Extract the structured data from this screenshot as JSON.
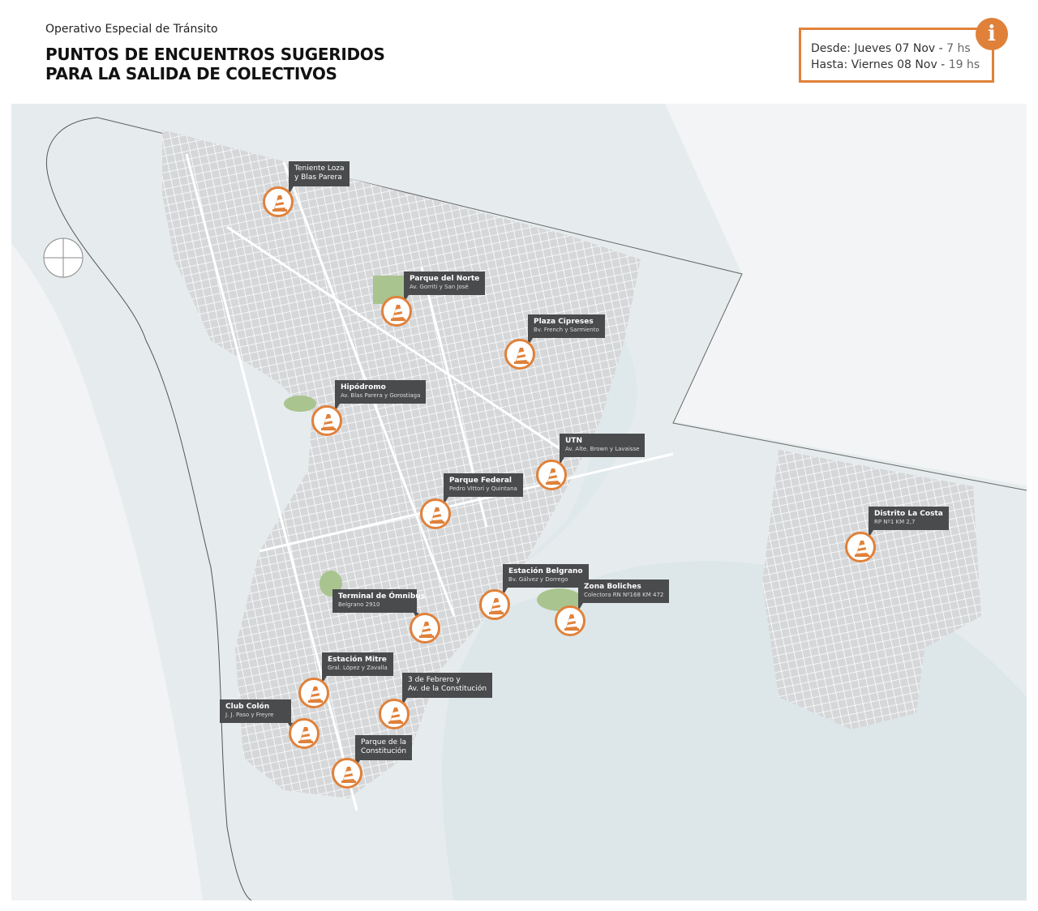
{
  "header": {
    "kicker": "Operativo Especial de Tránsito",
    "title_line1": "PUNTOS DE ENCUENTROS SUGERIDOS",
    "title_line2": "PARA LA SALIDA DE COLECTIVOS"
  },
  "info": {
    "from_label": "Desde: Jueves 07 Nov -",
    "from_time": "7 hs",
    "to_label": "Hasta: Viernes 08 Nov -",
    "to_time": "19 hs",
    "icon": "info-icon",
    "accent_color": "#e0813a"
  },
  "points": [
    {
      "title": "Teniente Loza",
      "title2": "y Blas Parera",
      "subtitle": ""
    },
    {
      "title": "Parque del Norte",
      "subtitle": "Av. Gorriti y San José"
    },
    {
      "title": "Plaza Cipreses",
      "subtitle": "Bv. French y Sarmiento"
    },
    {
      "title": "Hipódromo",
      "subtitle": "Av. Blas Parera y Gorostiaga"
    },
    {
      "title": "UTN",
      "subtitle": "Av. Alte. Brown y Lavaisse"
    },
    {
      "title": "Parque Federal",
      "subtitle": "Pedro Vittori y Quintana"
    },
    {
      "title": "Distrito La Costa",
      "subtitle": "RP Nº1 KM 2,7"
    },
    {
      "title": "Estación Belgrano",
      "subtitle": "Bv. Gálvez y Dorrego"
    },
    {
      "title": "Zona Boliches",
      "subtitle": "Colectora RN Nº168 KM 472"
    },
    {
      "title": "Terminal de Ómnibus",
      "subtitle": "Belgrano 2910"
    },
    {
      "title": "Estación Mitre",
      "subtitle": "Gral. López y Zavalla"
    },
    {
      "title": "3 de Febrero y",
      "title2": "Av. de la Constitución",
      "subtitle": ""
    },
    {
      "title": "Club Colón",
      "subtitle": "J. J. Paso y Freyre"
    },
    {
      "title": "Parque de la",
      "title2": "Constitución",
      "subtitle": ""
    }
  ],
  "marker_icon": "traffic-cone-icon"
}
